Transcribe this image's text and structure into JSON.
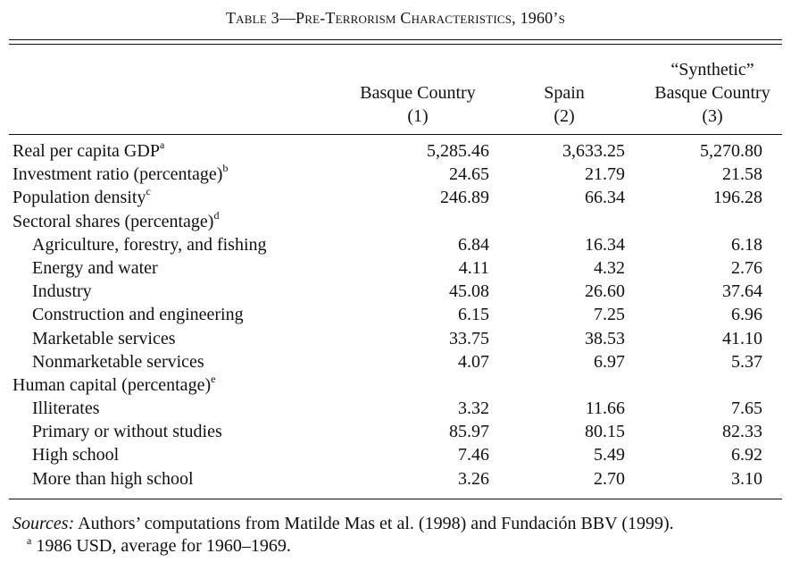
{
  "title": "Table 3—Pre-Terrorism Characteristics, 1960’s",
  "columns": [
    {
      "line1": "",
      "line2": "Basque Country",
      "line3": "(1)"
    },
    {
      "line1": "",
      "line2": "Spain",
      "line3": "(2)"
    },
    {
      "line1": "“Synthetic”",
      "line2": "Basque Country",
      "line3": "(3)"
    }
  ],
  "rows": [
    {
      "label": "Real per capita GDP",
      "sup": "a",
      "indent": false,
      "values": [
        "5,285.46",
        "3,633.25",
        "5,270.80"
      ]
    },
    {
      "label": "Investment ratio (percentage)",
      "sup": "b",
      "indent": false,
      "values": [
        "24.65",
        "21.79",
        "21.58"
      ]
    },
    {
      "label": "Population density",
      "sup": "c",
      "indent": false,
      "values": [
        "246.89",
        "66.34",
        "196.28"
      ]
    },
    {
      "label": "Sectoral shares (percentage)",
      "sup": "d",
      "indent": false,
      "values": [
        "",
        "",
        ""
      ]
    },
    {
      "label": "Agriculture, forestry, and fishing",
      "sup": "",
      "indent": true,
      "values": [
        "6.84",
        "16.34",
        "6.18"
      ]
    },
    {
      "label": "Energy and water",
      "sup": "",
      "indent": true,
      "values": [
        "4.11",
        "4.32",
        "2.76"
      ]
    },
    {
      "label": "Industry",
      "sup": "",
      "indent": true,
      "values": [
        "45.08",
        "26.60",
        "37.64"
      ]
    },
    {
      "label": "Construction and engineering",
      "sup": "",
      "indent": true,
      "values": [
        "6.15",
        "7.25",
        "6.96"
      ]
    },
    {
      "label": "Marketable services",
      "sup": "",
      "indent": true,
      "values": [
        "33.75",
        "38.53",
        "41.10"
      ]
    },
    {
      "label": "Nonmarketable services",
      "sup": "",
      "indent": true,
      "values": [
        "4.07",
        "6.97",
        "5.37"
      ]
    },
    {
      "label": "Human capital (percentage)",
      "sup": "e",
      "indent": false,
      "values": [
        "",
        "",
        ""
      ]
    },
    {
      "label": "Illiterates",
      "sup": "",
      "indent": true,
      "values": [
        "3.32",
        "11.66",
        "7.65"
      ]
    },
    {
      "label": "Primary or without studies",
      "sup": "",
      "indent": true,
      "values": [
        "85.97",
        "80.15",
        "82.33"
      ]
    },
    {
      "label": "High school",
      "sup": "",
      "indent": true,
      "values": [
        "7.46",
        "5.49",
        "6.92"
      ]
    },
    {
      "label": "More than high school",
      "sup": "",
      "indent": true,
      "values": [
        "3.26",
        "2.70",
        "3.10"
      ]
    }
  ],
  "notes": {
    "sources_label": "Sources:",
    "sources_text": " Authors’ computations from Matilde Mas et al. (1998) and Fundación BBV (1999).",
    "footnote_a_marker": "a",
    "footnote_a_text": " 1986 USD, average for 1960–1969."
  }
}
